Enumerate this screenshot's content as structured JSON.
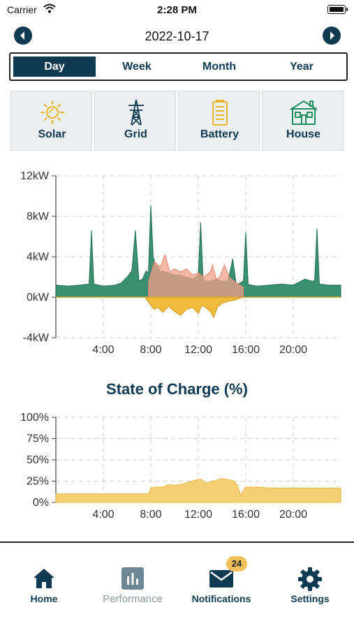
{
  "status_bar": {
    "carrier": "Carrier",
    "time": "2:28 PM"
  },
  "date_nav": {
    "date": "2022-10-17",
    "prev_icon": "chevron-left-icon",
    "next_icon": "chevron-right-icon"
  },
  "period_tabs": [
    {
      "label": "Day",
      "active": true
    },
    {
      "label": "Week",
      "active": false
    },
    {
      "label": "Month",
      "active": false
    },
    {
      "label": "Year",
      "active": false
    }
  ],
  "source_tiles": [
    {
      "label": "Solar",
      "icon": "sun-icon",
      "color": "#f0b429"
    },
    {
      "label": "Grid",
      "icon": "power-tower-icon",
      "color": "#0e3a52"
    },
    {
      "label": "Battery",
      "icon": "battery-icon",
      "color": "#f0b429"
    },
    {
      "label": "House",
      "icon": "house-icon",
      "color": "#1f8f5f"
    }
  ],
  "colors": {
    "brand": "#0e3a52",
    "house": "#2e8b6a",
    "solar": "#f0b429",
    "grid": "#f4a08a",
    "battery_fill": "#f6cf72",
    "badge": "#f2c15a"
  },
  "chart_data": [
    {
      "type": "area",
      "title": "",
      "xlabel": "",
      "ylabel": "",
      "x_ticks": [
        "4:00",
        "8:00",
        "12:00",
        "16:00",
        "20:00"
      ],
      "y_ticks": [
        "12kW",
        "8kW",
        "4kW",
        "0kW",
        "-4kW"
      ],
      "xlim": [
        0,
        24
      ],
      "ylim": [
        -4,
        12
      ],
      "grid": true,
      "series": [
        {
          "key": "house",
          "x": [
            0,
            1,
            2,
            2.8,
            3,
            3.2,
            4,
            5,
            5.5,
            6,
            6.4,
            6.7,
            7,
            7.3,
            7.6,
            7.8,
            8,
            8.2,
            8.4,
            8.6,
            8.8,
            9,
            9.5,
            10,
            10.5,
            11,
            11.5,
            12,
            12.2,
            12.4,
            12.6,
            13,
            13.5,
            14,
            14.5,
            14.9,
            15.2,
            15.5,
            15.8,
            16,
            16.2,
            16.4,
            17,
            18,
            19,
            20,
            21,
            21.5,
            21.8,
            22,
            22.2,
            23,
            24
          ],
          "y": [
            1.2,
            1.1,
            1.2,
            1.3,
            6.6,
            1.3,
            1.1,
            1.2,
            1.4,
            2.0,
            2.6,
            6.6,
            1.6,
            1.8,
            2.6,
            2.4,
            9.1,
            4.0,
            3.2,
            3.0,
            2.5,
            2.6,
            2.4,
            2.2,
            2.2,
            2.0,
            1.8,
            2.2,
            7.4,
            1.8,
            1.6,
            1.6,
            1.8,
            1.6,
            1.6,
            3.8,
            1.2,
            1.4,
            1.6,
            6.4,
            1.3,
            1.2,
            1.1,
            1.2,
            1.3,
            1.2,
            1.8,
            1.6,
            1.6,
            6.8,
            1.3,
            1.2,
            1.2
          ]
        },
        {
          "key": "grid",
          "x": [
            7.8,
            8.3,
            8.8,
            9.2,
            9.6,
            10,
            10.5,
            11,
            11.5,
            12,
            12.5,
            13,
            13.2,
            13.5,
            13.8,
            14.2,
            14.6,
            15,
            15.5,
            15.8
          ],
          "y": [
            1.5,
            3.5,
            3.0,
            4.2,
            2.5,
            2.8,
            2.5,
            2.8,
            2.2,
            2.4,
            2.0,
            2.5,
            3.2,
            1.8,
            2.0,
            3.2,
            2.0,
            1.6,
            1.2,
            1.0
          ]
        },
        {
          "key": "solar",
          "x": [
            7.5,
            8,
            8.3,
            8.6,
            9,
            9.5,
            10,
            10.5,
            11,
            11.5,
            12,
            12.3,
            12.6,
            13,
            13.3,
            13.6,
            14,
            14.5,
            15,
            15.5,
            15.8
          ],
          "y": [
            0,
            -0.8,
            -1.2,
            -1.0,
            -1.5,
            -0.9,
            -1.4,
            -1.8,
            -1.2,
            -1.0,
            -1.6,
            -0.8,
            -1.0,
            -1.4,
            -2.0,
            -1.0,
            -0.6,
            -0.4,
            -0.3,
            -0.1,
            0
          ]
        }
      ]
    },
    {
      "type": "area",
      "title": "State of Charge (%)",
      "xlabel": "",
      "ylabel": "",
      "x_ticks": [
        "4:00",
        "8:00",
        "12:00",
        "16:00",
        "20:00"
      ],
      "y_ticks": [
        "100%",
        "75%",
        "50%",
        "25%",
        "0%"
      ],
      "xlim": [
        0,
        24
      ],
      "ylim": [
        0,
        100
      ],
      "grid": true,
      "series": [
        {
          "key": "soc",
          "x": [
            0,
            7.8,
            8,
            8.5,
            9,
            9.5,
            10,
            10.5,
            11,
            11.5,
            12,
            12.3,
            12.5,
            13,
            13.5,
            14,
            14.5,
            15,
            15.3,
            15.6,
            15.9,
            16.1,
            16.5,
            17,
            18,
            19,
            20,
            22,
            24
          ],
          "y": [
            10,
            10,
            17,
            18,
            18,
            21,
            20,
            21,
            23,
            25,
            27,
            27,
            23,
            24,
            26,
            28,
            27,
            25,
            20,
            8,
            17,
            18,
            18,
            18,
            17,
            17,
            17,
            17,
            17
          ]
        }
      ]
    }
  ],
  "bottom_nav": [
    {
      "label": "Home",
      "icon": "home-icon",
      "active": false
    },
    {
      "label": "Performance",
      "icon": "bar-chart-icon",
      "active": true
    },
    {
      "label": "Notifications",
      "icon": "mail-icon",
      "active": false,
      "badge": "24"
    },
    {
      "label": "Settings",
      "icon": "gear-icon",
      "active": false
    }
  ]
}
